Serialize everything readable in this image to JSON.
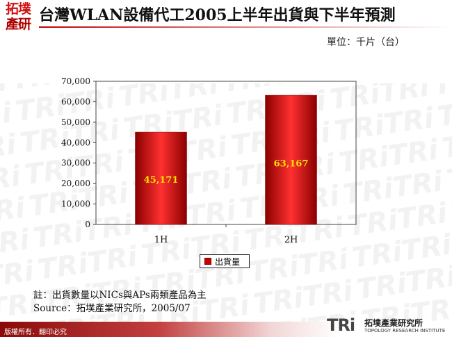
{
  "header": {
    "logo_line1": "拓墣",
    "logo_line2": "產研",
    "title": "台灣WLAN設備代工2005上半年出貨與下半年預測",
    "unit": "單位：千片（台）"
  },
  "chart_data": {
    "type": "bar",
    "categories": [
      "1H",
      "2H"
    ],
    "series": [
      {
        "name": "出貨量",
        "values": [
          45171,
          63167
        ]
      }
    ],
    "data_labels": [
      "45,171",
      "63,167"
    ],
    "yticks": [
      "0",
      "10,000",
      "20,000",
      "30,000",
      "40,000",
      "50,000",
      "60,000",
      "70,000"
    ],
    "ylim": [
      0,
      70000
    ],
    "ystep": 10000,
    "grid": false,
    "legend_position": "bottom",
    "colors": {
      "bar": "#cc0000",
      "bar_light": "#ff3030",
      "bar_dark": "#8a0000",
      "data_label": "#ffe000"
    }
  },
  "notes": {
    "note": "註：出貨數量以NICs與APs兩類產品為主",
    "source": "Source：拓墣產業研究所，2005/07"
  },
  "footer": {
    "copyright": "版權所有．翻印必究",
    "logo_mark": "TRi",
    "logo_cn": "拓墣產業研究所",
    "logo_en": "TOPOLOGY RESEARCH INSTITUTE"
  }
}
